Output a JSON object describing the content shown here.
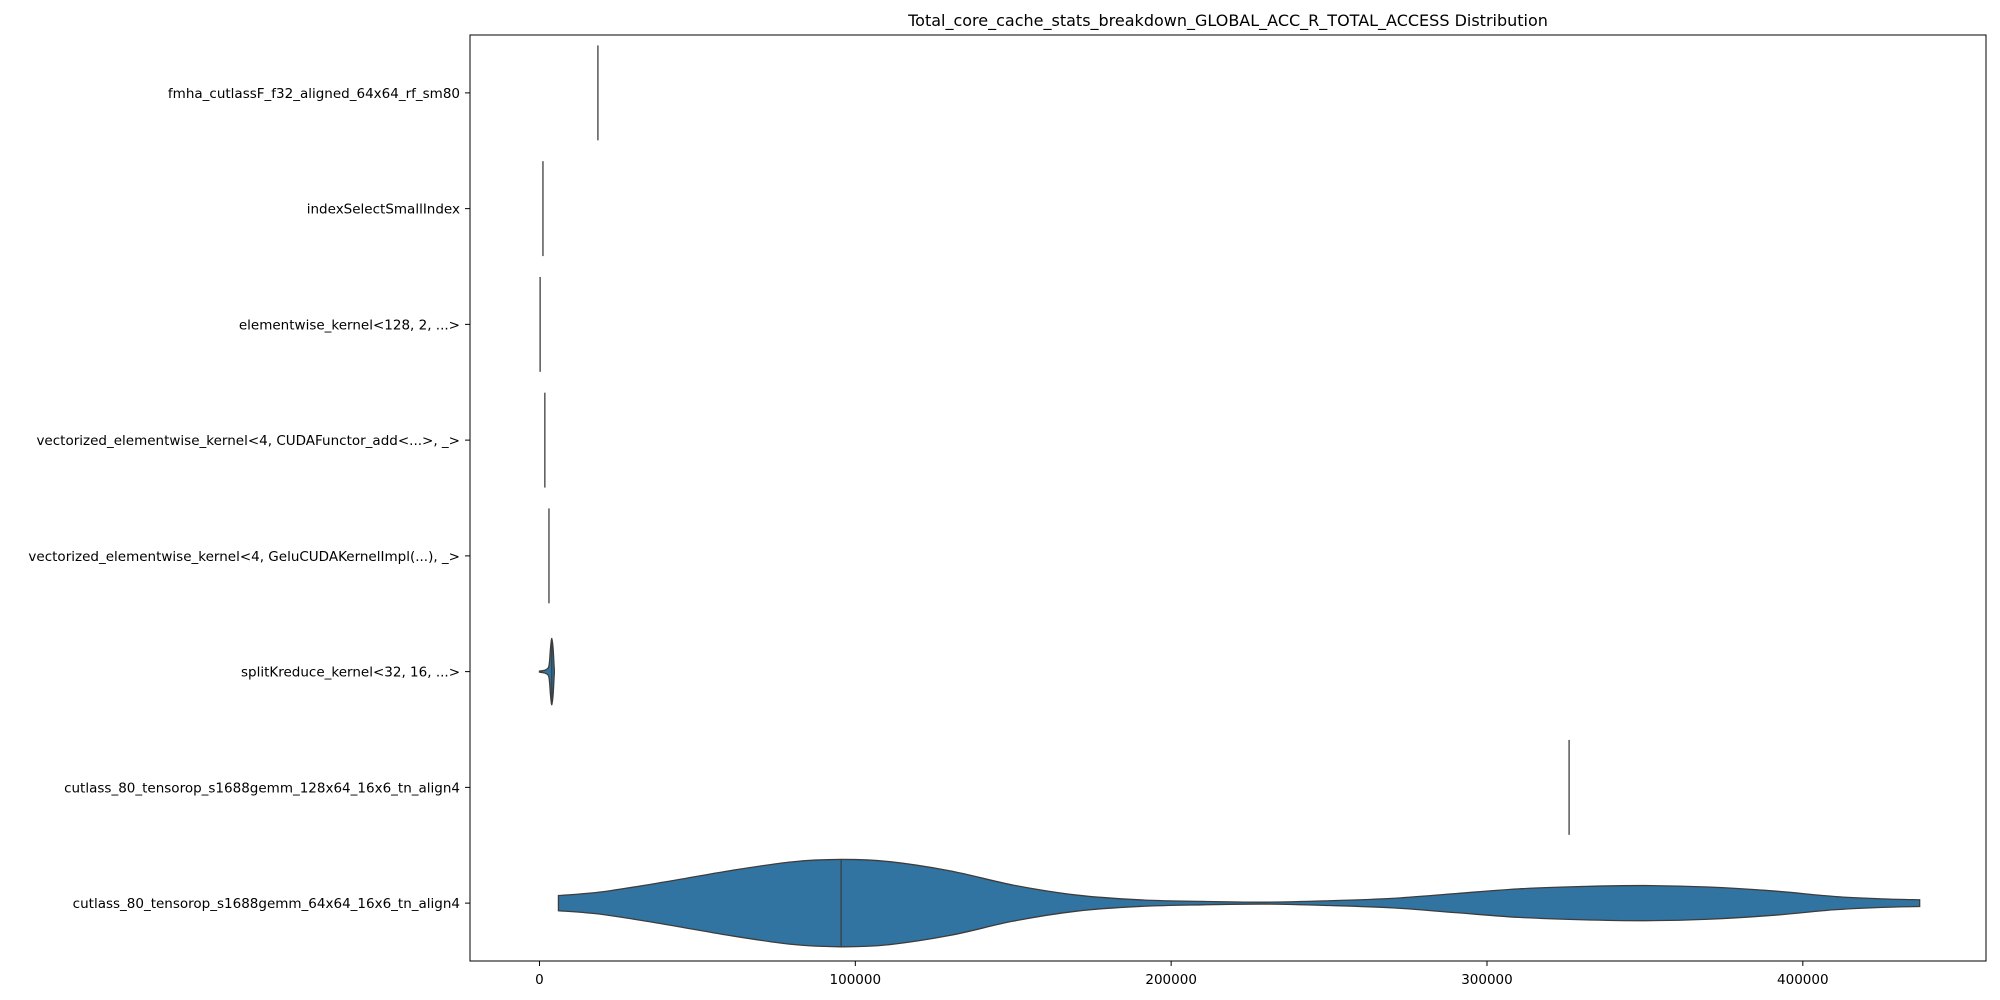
{
  "chart_data": {
    "type": "violin",
    "orientation": "horizontal",
    "title": "Total_core_cache_stats_breakdown_GLOBAL_ACC_R_TOTAL_ACCESS Distribution",
    "xlabel": "",
    "ylabel": "",
    "xlim": [
      -22000,
      458000
    ],
    "xticks": [
      0,
      100000,
      200000,
      300000,
      400000
    ],
    "xtick_labels": [
      "0",
      "100000",
      "200000",
      "300000",
      "400000"
    ],
    "grid": false,
    "fill_color": "#3274a1",
    "edge_color": "#3d3d3d",
    "categories": [
      "fmha_cutlassF_f32_aligned_64x64_rf_sm80",
      "indexSelectSmallIndex",
      "elementwise_kernel<128, 2, ...>",
      "vectorized_elementwise_kernel<4, CUDAFunctor_add<...>, _>",
      "vectorized_elementwise_kernel<4, GeluCUDAKernelImpl(...), _>",
      "splitKreduce_kernel<32, 16, ...>",
      "cutlass_80_tensorop_s1688gemm_128x64_16x6_tn_align4",
      "cutlass_80_tensorop_s1688gemm_64x64_16x6_tn_align4"
    ],
    "series": [
      {
        "category": "fmha_cutlassF_f32_aligned_64x64_rf_sm80",
        "median": 18500,
        "min": 18500,
        "max": 18500,
        "density": []
      },
      {
        "category": "indexSelectSmallIndex",
        "median": 1100,
        "min": 1100,
        "max": 1100,
        "density": []
      },
      {
        "category": "elementwise_kernel<128, 2, ...>",
        "median": 200,
        "min": 200,
        "max": 200,
        "density": []
      },
      {
        "category": "vectorized_elementwise_kernel<4, CUDAFunctor_add<...>, _>",
        "median": 1700,
        "min": 1700,
        "max": 1700,
        "density": []
      },
      {
        "category": "vectorized_elementwise_kernel<4, GeluCUDAKernelImpl(...), _>",
        "median": 3000,
        "min": 3000,
        "max": 3000,
        "density": []
      },
      {
        "category": "splitKreduce_kernel<32, 16, ...>",
        "median": 3900,
        "min": 0,
        "max": 4700,
        "density": [
          [
            0,
            0.01
          ],
          [
            1000,
            0.02
          ],
          [
            2000,
            0.04
          ],
          [
            3000,
            0.12
          ],
          [
            3500,
            0.5
          ],
          [
            3900,
            0.7
          ],
          [
            4300,
            0.5
          ],
          [
            4600,
            0.15
          ],
          [
            4700,
            0.05
          ]
        ]
      },
      {
        "category": "cutlass_80_tensorop_s1688gemm_128x64_16x6_tn_align4",
        "median": 326000,
        "min": 326000,
        "max": 326000,
        "density": []
      },
      {
        "category": "cutlass_80_tensorop_s1688gemm_64x64_16x6_tn_align4",
        "median": 95500,
        "min": 6000,
        "max": 437000,
        "density": [
          [
            6000,
            0.16
          ],
          [
            20000,
            0.24
          ],
          [
            40000,
            0.45
          ],
          [
            60000,
            0.68
          ],
          [
            80000,
            0.87
          ],
          [
            95500,
            0.92
          ],
          [
            110000,
            0.88
          ],
          [
            130000,
            0.68
          ],
          [
            150000,
            0.38
          ],
          [
            170000,
            0.17
          ],
          [
            190000,
            0.07
          ],
          [
            210000,
            0.035
          ],
          [
            230000,
            0.02
          ],
          [
            250000,
            0.05
          ],
          [
            270000,
            0.1
          ],
          [
            290000,
            0.2
          ],
          [
            310000,
            0.3
          ],
          [
            330000,
            0.35
          ],
          [
            350000,
            0.37
          ],
          [
            370000,
            0.34
          ],
          [
            390000,
            0.26
          ],
          [
            410000,
            0.14
          ],
          [
            425000,
            0.09
          ],
          [
            437000,
            0.07
          ]
        ]
      }
    ]
  }
}
